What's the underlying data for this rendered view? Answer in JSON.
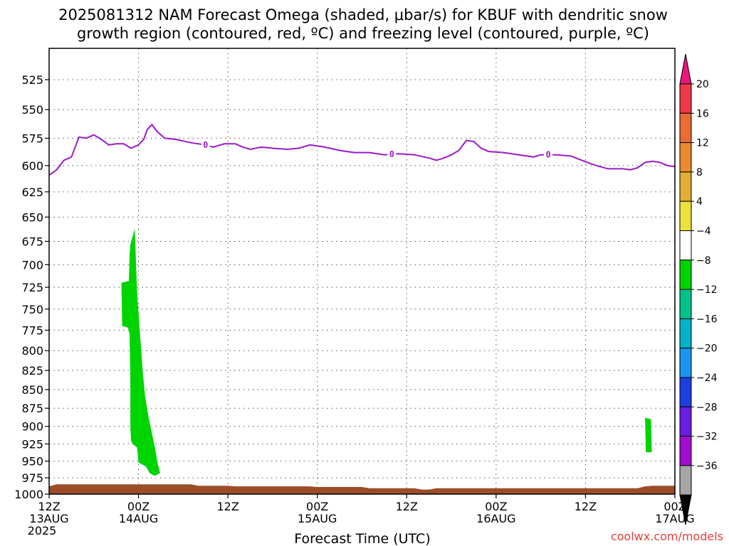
{
  "title_line1": "2025081312 NAM Forecast Omega (shaded, μbar/s) for KBUF with dendritic snow",
  "title_line2": "growth region (contoured, red, ºC) and freezing level (contoured, purple, ºC)",
  "xlabel": "Forecast Time (UTC)",
  "credit": "coolwx.com/models",
  "chart_data": {
    "type": "time-height",
    "y_axis": {
      "reversed": true,
      "ylim": [
        1000,
        500
      ],
      "ticks": [
        525,
        550,
        575,
        600,
        625,
        650,
        675,
        700,
        725,
        750,
        775,
        800,
        825,
        850,
        875,
        900,
        925,
        950,
        975,
        1000
      ]
    },
    "x_axis": {
      "xlim": [
        0,
        84
      ],
      "ticks": [
        {
          "h": 0,
          "l1": "12Z",
          "l2": "13AUG",
          "l3": "2025"
        },
        {
          "h": 12,
          "l1": "00Z",
          "l2": "14AUG",
          "l3": ""
        },
        {
          "h": 24,
          "l1": "12Z",
          "l2": "",
          "l3": ""
        },
        {
          "h": 36,
          "l1": "00Z",
          "l2": "15AUG",
          "l3": ""
        },
        {
          "h": 48,
          "l1": "12Z",
          "l2": "",
          "l3": ""
        },
        {
          "h": 60,
          "l1": "00Z",
          "l2": "16AUG",
          "l3": ""
        },
        {
          "h": 72,
          "l1": "12Z",
          "l2": "",
          "l3": ""
        },
        {
          "h": 84,
          "l1": "00Z",
          "l2": "17AUG",
          "l3": ""
        }
      ]
    },
    "grid": true,
    "freezing_level": {
      "color": "#9b1bc8",
      "label": "0",
      "label_hours": [
        21,
        46,
        67
      ],
      "points": [
        [
          0,
          609
        ],
        [
          1,
          604
        ],
        [
          2,
          595
        ],
        [
          3,
          592
        ],
        [
          4,
          574
        ],
        [
          5,
          575
        ],
        [
          6,
          572
        ],
        [
          7,
          576
        ],
        [
          8,
          581
        ],
        [
          9,
          580
        ],
        [
          10,
          580
        ],
        [
          11,
          584
        ],
        [
          12,
          581
        ],
        [
          12.7,
          576
        ],
        [
          13.2,
          567
        ],
        [
          13.8,
          563
        ],
        [
          14.5,
          569
        ],
        [
          15.5,
          575
        ],
        [
          17,
          576
        ],
        [
          19,
          579
        ],
        [
          21,
          581
        ],
        [
          22,
          583
        ],
        [
          23.5,
          580
        ],
        [
          25,
          580
        ],
        [
          26,
          583
        ],
        [
          27,
          585
        ],
        [
          28.5,
          583
        ],
        [
          30,
          584
        ],
        [
          32,
          585
        ],
        [
          33.5,
          584
        ],
        [
          35,
          581
        ],
        [
          37,
          583
        ],
        [
          39,
          586
        ],
        [
          41,
          588
        ],
        [
          43,
          588
        ],
        [
          45,
          590
        ],
        [
          47,
          589
        ],
        [
          49,
          590
        ],
        [
          51,
          593
        ],
        [
          52,
          595
        ],
        [
          53,
          593
        ],
        [
          54,
          590
        ],
        [
          55,
          586
        ],
        [
          56,
          577
        ],
        [
          57,
          578
        ],
        [
          58,
          584
        ],
        [
          59,
          587
        ],
        [
          61,
          588
        ],
        [
          63,
          590
        ],
        [
          65,
          592
        ],
        [
          66,
          590
        ],
        [
          68,
          590
        ],
        [
          70,
          591
        ],
        [
          71.5,
          595
        ],
        [
          73,
          599
        ],
        [
          75,
          603
        ],
        [
          77,
          603
        ],
        [
          78,
          604
        ],
        [
          79,
          602
        ],
        [
          80,
          597
        ],
        [
          81,
          596
        ],
        [
          82,
          597
        ],
        [
          83,
          600
        ],
        [
          84,
          601
        ]
      ]
    },
    "omega_regions": [
      {
        "range": "-8 to -4",
        "color": "#00d400",
        "points": [
          [
            11.5,
            662
          ],
          [
            11.8,
            730
          ],
          [
            12.2,
            780
          ],
          [
            12.6,
            830
          ],
          [
            12.9,
            860
          ],
          [
            13.4,
            890
          ],
          [
            13.8,
            910
          ],
          [
            14.2,
            930
          ],
          [
            14.6,
            955
          ],
          [
            14.9,
            968
          ],
          [
            14.2,
            972
          ],
          [
            13.5,
            968
          ],
          [
            13.0,
            958
          ],
          [
            12.0,
            952
          ],
          [
            11.8,
            930
          ],
          [
            11.2,
            925
          ],
          [
            11.0,
            920
          ],
          [
            10.9,
            900
          ],
          [
            10.9,
            840
          ],
          [
            10.8,
            780
          ],
          [
            10.6,
            772
          ],
          [
            9.8,
            770
          ],
          [
            9.7,
            720
          ],
          [
            10.7,
            718
          ],
          [
            10.8,
            690
          ],
          [
            10.9,
            678
          ]
        ]
      },
      {
        "range": "-8 to -4",
        "color": "#00d400",
        "points": [
          [
            80,
            888
          ],
          [
            80.8,
            890
          ],
          [
            80.9,
            937
          ],
          [
            80.1,
            937
          ]
        ]
      }
    ],
    "terrain": {
      "color": "#9b4d29",
      "points": [
        [
          0,
          988
        ],
        [
          1,
          985
        ],
        [
          5,
          985
        ],
        [
          15,
          985
        ],
        [
          19,
          985
        ],
        [
          20,
          987
        ],
        [
          24,
          987
        ],
        [
          25,
          988
        ],
        [
          35,
          988
        ],
        [
          36,
          989
        ],
        [
          42,
          989
        ],
        [
          43,
          991
        ],
        [
          49,
          991
        ],
        [
          50,
          993
        ],
        [
          51,
          993
        ],
        [
          52,
          991
        ],
        [
          60,
          991
        ],
        [
          70,
          991
        ],
        [
          79,
          991
        ],
        [
          80,
          988
        ],
        [
          81,
          987
        ],
        [
          84,
          987
        ]
      ]
    },
    "colorbar": {
      "labels": [
        "20",
        "16",
        "12",
        "8",
        "4",
        "−4",
        "−8",
        "−12",
        "−16",
        "−20",
        "−24",
        "−28",
        "−32",
        "−36"
      ],
      "colors": [
        "#f0384a",
        "#ea6c36",
        "#ec8a2f",
        "#e3ae35",
        "#ece23b",
        "#ffffff",
        "#00d400",
        "#00c38a",
        "#00b3c6",
        "#1a95f0",
        "#1d3ee0",
        "#6a1ee0",
        "#a00ecd",
        "#a6a6a6"
      ],
      "top_arrow_color": "#e8197a",
      "bottom_arrow_color": "#000000"
    }
  }
}
